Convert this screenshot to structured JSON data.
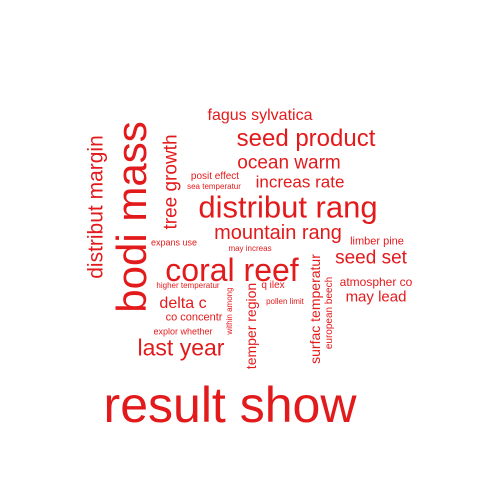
{
  "theme": {
    "word_color": "#e31a1c",
    "background": "#ffffff"
  },
  "words": [
    {
      "text": "result show"
    },
    {
      "text": "bodi mass"
    },
    {
      "text": "coral reef"
    },
    {
      "text": "distribut rang"
    },
    {
      "text": "seed product"
    },
    {
      "text": "distribut margin"
    },
    {
      "text": "tree growth"
    },
    {
      "text": "last year"
    },
    {
      "text": "mountain rang"
    },
    {
      "text": "ocean warm"
    },
    {
      "text": "fagus sylvatica"
    },
    {
      "text": "increas rate"
    },
    {
      "text": "seed set"
    },
    {
      "text": "temper region"
    },
    {
      "text": "surfac temperatur"
    },
    {
      "text": "delta c"
    },
    {
      "text": "may lead"
    },
    {
      "text": "limber pine"
    },
    {
      "text": "atmospher co"
    },
    {
      "text": "co concentr"
    },
    {
      "text": "european beech"
    },
    {
      "text": "posit effect"
    },
    {
      "text": "sea temperatur"
    },
    {
      "text": "expans use"
    },
    {
      "text": "may increas"
    },
    {
      "text": "higher temperatur"
    },
    {
      "text": "q ilex"
    },
    {
      "text": "pollen limit"
    },
    {
      "text": "within among"
    },
    {
      "text": "explor whether"
    }
  ]
}
